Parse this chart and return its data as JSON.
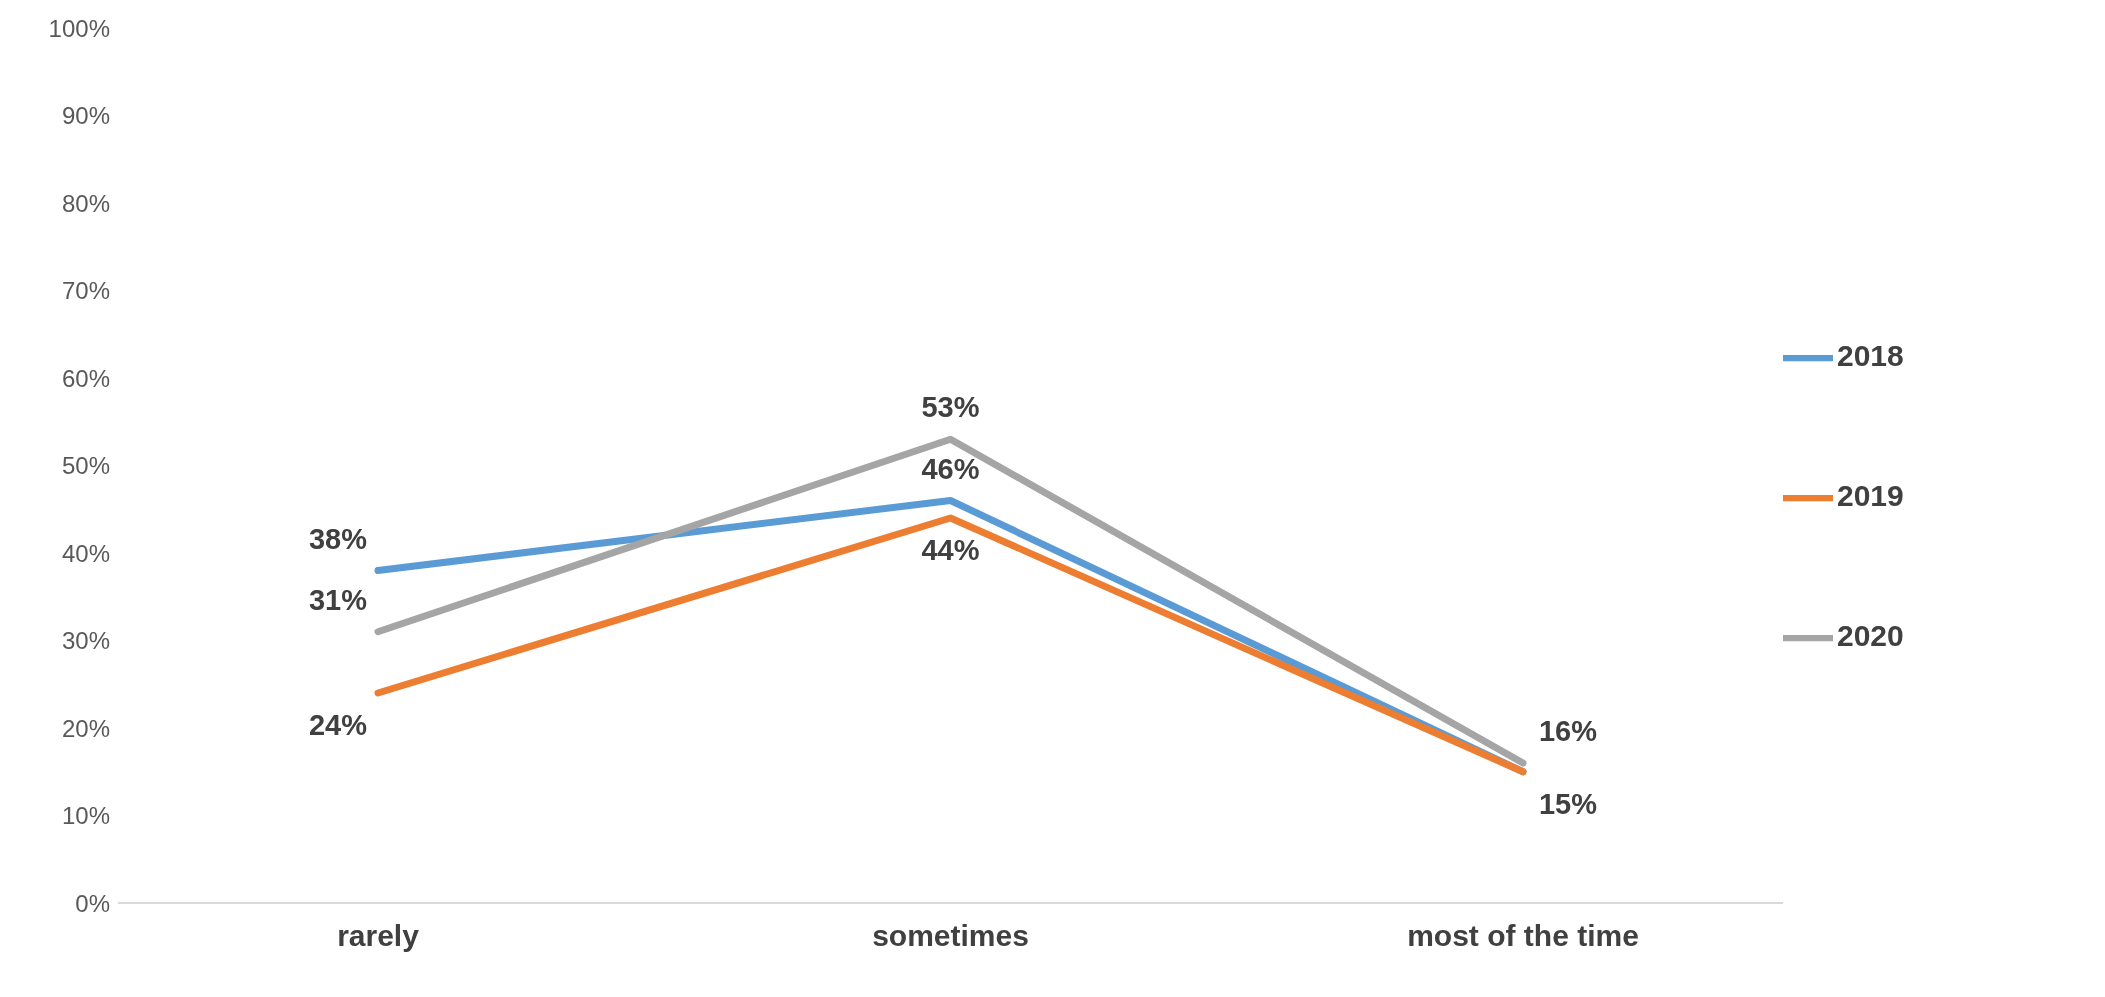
{
  "chart_data": {
    "type": "line",
    "categories": [
      "rarely",
      "sometimes",
      "most of the time"
    ],
    "series": [
      {
        "name": "2018",
        "color": "#5b9bd5",
        "values": [
          38,
          46,
          15
        ],
        "value_labels": [
          "38%",
          "46%",
          null
        ]
      },
      {
        "name": "2019",
        "color": "#ed7d31",
        "values": [
          24,
          44,
          15
        ],
        "value_labels": [
          "24%",
          "44%",
          "15%"
        ]
      },
      {
        "name": "2020",
        "color": "#a5a5a5",
        "values": [
          31,
          53,
          16
        ],
        "value_labels": [
          "31%",
          "53%",
          "16%"
        ]
      }
    ],
    "ylim": [
      0,
      100
    ],
    "yticks": [
      {
        "value": 0,
        "label": "0%"
      },
      {
        "value": 10,
        "label": "10%"
      },
      {
        "value": 20,
        "label": "20%"
      },
      {
        "value": 30,
        "label": "30%"
      },
      {
        "value": 40,
        "label": "40%"
      },
      {
        "value": 50,
        "label": "50%"
      },
      {
        "value": 60,
        "label": "60%"
      },
      {
        "value": 70,
        "label": "70%"
      },
      {
        "value": 80,
        "label": "80%"
      },
      {
        "value": 90,
        "label": "90%"
      },
      {
        "value": 100,
        "label": "100%"
      }
    ],
    "grid": false,
    "legend": "right",
    "marker": "none",
    "line_style": "solid"
  }
}
